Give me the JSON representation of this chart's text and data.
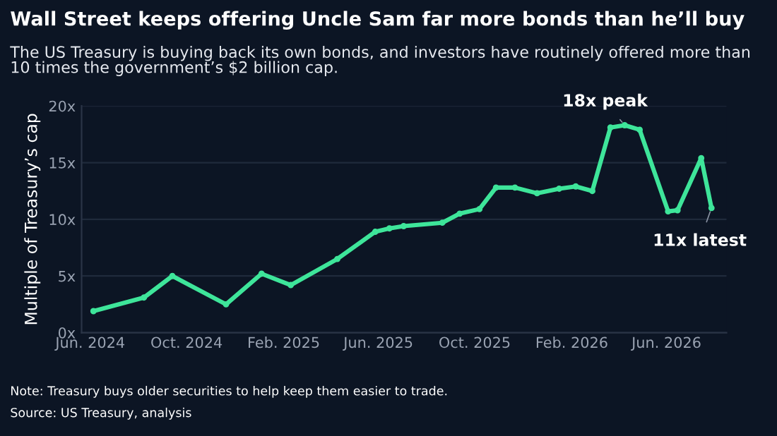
{
  "chart_data": {
    "type": "line",
    "title": "Wall Street keeps offering Uncle Sam far more bonds than he’ll buy",
    "subtitle": "The US Treasury is buying back its own bonds, and investors have routinely offered more than 10 times the government’s $2 billion cap.",
    "ylabel": "Multiple of Treasury’s cap",
    "x": [
      "2024-06-05",
      "2024-08-08",
      "2024-09-13",
      "2024-11-20",
      "2025-01-04",
      "2025-02-10",
      "2025-04-10",
      "2025-05-28",
      "2025-06-15",
      "2025-07-03",
      "2025-08-21",
      "2025-09-12",
      "2025-10-07",
      "2025-10-28",
      "2025-11-21",
      "2025-12-19",
      "2026-01-16",
      "2026-02-06",
      "2026-02-27",
      "2026-03-22",
      "2026-04-09",
      "2026-04-28",
      "2026-06-03",
      "2026-06-15",
      "2026-07-15",
      "2026-07-28"
    ],
    "series": [
      {
        "color": "#3ee59a",
        "values": [
          1.9,
          3.1,
          5.0,
          2.5,
          5.2,
          4.2,
          6.5,
          8.9,
          9.2,
          9.4,
          9.7,
          10.5,
          10.9,
          12.8,
          12.8,
          12.3,
          12.7,
          12.9,
          12.5,
          18.1,
          18.3,
          17.9,
          10.7,
          10.8,
          15.4,
          11.0
        ]
      }
    ],
    "xlim": [
      "2024-05-21",
      "2026-08-16"
    ],
    "xticks": [
      {
        "value": "2024-06-01",
        "label": "Jun. 2024"
      },
      {
        "value": "2024-10-01",
        "label": "Oct. 2024"
      },
      {
        "value": "2025-02-01",
        "label": "Feb. 2025"
      },
      {
        "value": "2025-06-01",
        "label": "Jun. 2025"
      },
      {
        "value": "2025-10-01",
        "label": "Oct. 2025"
      },
      {
        "value": "2026-02-01",
        "label": "Feb. 2026"
      },
      {
        "value": "2026-06-01",
        "label": "Jun. 2026"
      }
    ],
    "ylim": [
      0,
      20
    ],
    "yticks": [
      {
        "value": 0,
        "label": "0x"
      },
      {
        "value": 5,
        "label": "5x"
      },
      {
        "value": 10,
        "label": "10x"
      },
      {
        "value": 15,
        "label": "15x"
      },
      {
        "value": 20,
        "label": "20x"
      }
    ],
    "grid": "y",
    "marker": "circle",
    "line_style": "solid",
    "annotations": [
      {
        "text": "18x peak",
        "x": "2026-04-09",
        "y": 18.3
      },
      {
        "text": "11x latest",
        "x": "2026-07-28",
        "y": 11.0
      },
      "Note: Treasury buys older securities to help keep them easier to trade.",
      "Source: US Treasury, analysis"
    ]
  }
}
